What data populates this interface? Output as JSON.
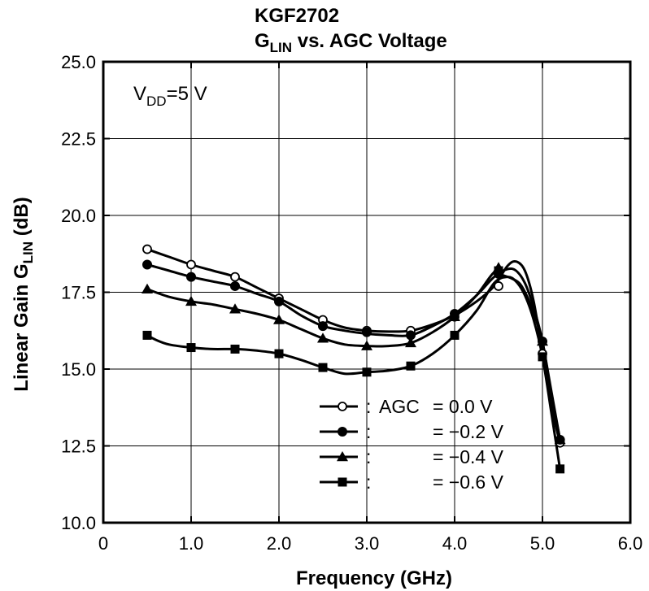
{
  "chart_data": {
    "type": "line",
    "title": "KGF2702",
    "subtitle": {
      "main": "G",
      "sub": "LIN",
      "rest": " vs. AGC Voltage"
    },
    "xlabel": "Frequency  (GHz)",
    "ylabel": {
      "main": "Linear Gain  G",
      "sub": "LIN",
      "rest": "  (dB)"
    },
    "xlim": [
      0,
      6.0
    ],
    "ylim": [
      10.0,
      25.0
    ],
    "x_ticks": [
      0,
      1,
      2,
      3,
      4,
      5,
      6
    ],
    "x_tick_labels": [
      "0",
      "1.0",
      "2.0",
      "3.0",
      "4.0",
      "5.0",
      "6.0"
    ],
    "y_ticks": [
      10,
      12.5,
      15,
      17.5,
      20,
      22.5,
      25
    ],
    "y_tick_labels": [
      "10.0",
      "12.5",
      "15.0",
      "17.5",
      "20.0",
      "22.5",
      "25.0"
    ],
    "grid": true,
    "annotation": {
      "main": "V",
      "sub": "DD",
      "rest": "=5 V"
    },
    "legend_position": "bottom-right",
    "series": [
      {
        "legend_prefix": ":",
        "legend_key": "AGC",
        "legend_value": "=   0.0 V",
        "marker": "circle-open",
        "x": [
          0.5,
          1.0,
          1.5,
          2.0,
          2.5,
          3.0,
          3.5,
          4.0,
          4.5,
          5.0,
          5.2
        ],
        "y": [
          18.9,
          18.4,
          18.0,
          17.3,
          16.6,
          16.25,
          16.25,
          16.7,
          17.7,
          15.5,
          12.6
        ],
        "curve": [
          [
            0.5,
            18.9
          ],
          [
            0.75,
            18.65
          ],
          [
            1.0,
            18.4
          ],
          [
            1.25,
            18.2
          ],
          [
            1.5,
            18.0
          ],
          [
            1.75,
            17.65
          ],
          [
            2.0,
            17.3
          ],
          [
            2.25,
            16.95
          ],
          [
            2.5,
            16.6
          ],
          [
            2.75,
            16.35
          ],
          [
            3.0,
            16.25
          ],
          [
            3.25,
            16.22
          ],
          [
            3.5,
            16.25
          ],
          [
            3.75,
            16.45
          ],
          [
            4.0,
            16.75
          ],
          [
            4.25,
            17.2
          ],
          [
            4.45,
            17.7
          ],
          [
            4.6,
            18.35
          ],
          [
            4.7,
            18.5
          ],
          [
            4.8,
            18.2
          ],
          [
            4.9,
            17.2
          ],
          [
            5.0,
            15.5
          ],
          [
            5.1,
            13.8
          ],
          [
            5.2,
            12.6
          ]
        ]
      },
      {
        "legend_prefix": ":",
        "legend_key": "",
        "legend_value": "= −0.2 V",
        "marker": "circle-filled",
        "x": [
          0.5,
          1.0,
          1.5,
          2.0,
          2.5,
          3.0,
          3.5,
          4.0,
          4.5,
          5.0,
          5.2
        ],
        "y": [
          18.4,
          18.0,
          17.7,
          17.2,
          16.4,
          16.2,
          16.1,
          16.8,
          18.1,
          15.9,
          12.7
        ],
        "curve": [
          [
            0.5,
            18.4
          ],
          [
            0.75,
            18.2
          ],
          [
            1.0,
            18.0
          ],
          [
            1.25,
            17.85
          ],
          [
            1.5,
            17.7
          ],
          [
            1.75,
            17.45
          ],
          [
            2.0,
            17.2
          ],
          [
            2.25,
            16.75
          ],
          [
            2.5,
            16.4
          ],
          [
            2.75,
            16.25
          ],
          [
            3.0,
            16.15
          ],
          [
            3.25,
            16.1
          ],
          [
            3.5,
            16.1
          ],
          [
            3.75,
            16.4
          ],
          [
            4.0,
            16.8
          ],
          [
            4.25,
            17.4
          ],
          [
            4.45,
            18.0
          ],
          [
            4.6,
            18.25
          ],
          [
            4.7,
            18.2
          ],
          [
            4.8,
            17.8
          ],
          [
            4.9,
            17.0
          ],
          [
            5.0,
            15.9
          ],
          [
            5.1,
            14.2
          ],
          [
            5.2,
            12.7
          ]
        ]
      },
      {
        "legend_prefix": ":",
        "legend_key": "",
        "legend_value": "= −0.4 V",
        "marker": "triangle-filled",
        "x": [
          0.5,
          1.0,
          1.5,
          2.0,
          2.5,
          3.0,
          3.5,
          4.0,
          4.5,
          5.0,
          5.2
        ],
        "y": [
          17.6,
          17.2,
          16.95,
          16.6,
          16.0,
          15.75,
          15.85,
          16.7,
          18.3,
          15.9,
          12.7
        ],
        "curve": [
          [
            0.5,
            17.6
          ],
          [
            0.75,
            17.35
          ],
          [
            1.0,
            17.2
          ],
          [
            1.25,
            17.1
          ],
          [
            1.5,
            16.95
          ],
          [
            1.75,
            16.8
          ],
          [
            2.0,
            16.6
          ],
          [
            2.25,
            16.3
          ],
          [
            2.5,
            16.0
          ],
          [
            2.75,
            15.8
          ],
          [
            3.0,
            15.75
          ],
          [
            3.25,
            15.75
          ],
          [
            3.5,
            15.85
          ],
          [
            3.75,
            16.2
          ],
          [
            4.0,
            16.7
          ],
          [
            4.25,
            17.4
          ],
          [
            4.45,
            18.15
          ],
          [
            4.55,
            18.05
          ],
          [
            4.65,
            17.95
          ],
          [
            4.75,
            17.75
          ],
          [
            4.85,
            17.2
          ],
          [
            4.95,
            16.4
          ],
          [
            5.0,
            15.9
          ],
          [
            5.1,
            14.3
          ],
          [
            5.2,
            12.7
          ]
        ]
      },
      {
        "legend_prefix": ":",
        "legend_key": "",
        "legend_value": "= −0.6 V",
        "marker": "square-filled",
        "x": [
          0.5,
          1.0,
          1.5,
          2.0,
          2.5,
          3.0,
          3.5,
          4.0,
          4.5,
          5.0,
          5.2
        ],
        "y": [
          16.1,
          15.7,
          15.65,
          15.5,
          15.05,
          14.9,
          15.1,
          16.1,
          18.2,
          15.4,
          11.75
        ],
        "curve": [
          [
            0.5,
            16.1
          ],
          [
            0.6,
            15.95
          ],
          [
            0.75,
            15.8
          ],
          [
            1.0,
            15.7
          ],
          [
            1.25,
            15.65
          ],
          [
            1.5,
            15.65
          ],
          [
            1.75,
            15.6
          ],
          [
            2.0,
            15.5
          ],
          [
            2.25,
            15.3
          ],
          [
            2.5,
            15.05
          ],
          [
            2.75,
            14.85
          ],
          [
            3.0,
            14.9
          ],
          [
            3.25,
            14.95
          ],
          [
            3.5,
            15.1
          ],
          [
            3.75,
            15.5
          ],
          [
            4.0,
            16.1
          ],
          [
            4.25,
            16.9
          ],
          [
            4.45,
            17.8
          ],
          [
            4.6,
            18.0
          ],
          [
            4.7,
            17.85
          ],
          [
            4.8,
            17.4
          ],
          [
            4.9,
            16.6
          ],
          [
            5.0,
            15.4
          ],
          [
            5.1,
            13.6
          ],
          [
            5.2,
            11.75
          ]
        ]
      }
    ]
  }
}
